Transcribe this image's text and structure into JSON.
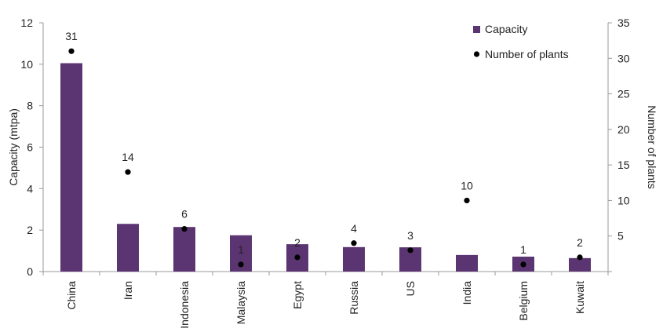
{
  "chart_data": {
    "type": "bar",
    "categories": [
      "China",
      "Iran",
      "Indonesia",
      "Malaysia",
      "Egypt",
      "Russia",
      "US",
      "India",
      "Belgium",
      "Kuwait"
    ],
    "series": [
      {
        "name": "Capacity",
        "kind": "bar",
        "axis": "left",
        "values": [
          10.05,
          2.3,
          2.15,
          1.75,
          1.32,
          1.18,
          1.17,
          0.8,
          0.72,
          0.65
        ],
        "color": "#5b3472"
      },
      {
        "name": "Number of plants",
        "kind": "scatter",
        "axis": "right",
        "values": [
          31,
          14,
          6,
          1,
          2,
          4,
          3,
          10,
          1,
          2
        ],
        "data_labels": [
          "31",
          "14",
          "6",
          "1",
          "2",
          "4",
          "3",
          "10",
          "1",
          "2"
        ],
        "color": "#000000"
      }
    ],
    "ylabel": "Capacity (mtpa)",
    "y2label": "Number of plants",
    "ylim": [
      0,
      12
    ],
    "y2lim": [
      0,
      35
    ],
    "yticks": [
      "0",
      "2",
      "4",
      "6",
      "8",
      "10",
      "12"
    ],
    "y2ticks": [
      "5",
      "10",
      "15",
      "20",
      "25",
      "30",
      "35"
    ],
    "legend": {
      "position": "top-right",
      "entries": [
        "Capacity",
        "Number of plants"
      ]
    }
  }
}
